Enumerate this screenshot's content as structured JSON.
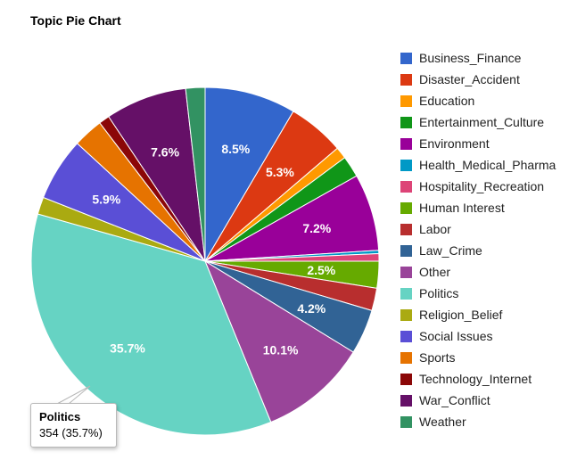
{
  "chart_data": {
    "type": "pie",
    "title": "Topic Pie Chart",
    "start_angle_deg": 0,
    "direction": "clockwise",
    "slices": [
      {
        "label": "Business_Finance",
        "value": 8.5,
        "color": "#3366cc",
        "data_label": "8.5%"
      },
      {
        "label": "Disaster_Accident",
        "value": 5.3,
        "color": "#dc3912",
        "data_label": "5.3%"
      },
      {
        "label": "Education",
        "value": 1.1,
        "color": "#ff9900",
        "data_label": ""
      },
      {
        "label": "Entertainment_Culture",
        "value": 2.0,
        "color": "#109618",
        "data_label": ""
      },
      {
        "label": "Environment",
        "value": 7.2,
        "color": "#990099",
        "data_label": "7.2%"
      },
      {
        "label": "Health_Medical_Pharma",
        "value": 0.3,
        "color": "#0099c6",
        "data_label": ""
      },
      {
        "label": "Hospitality_Recreation",
        "value": 0.7,
        "color": "#dd4477",
        "data_label": ""
      },
      {
        "label": "Human Interest",
        "value": 2.5,
        "color": "#66aa00",
        "data_label": "2.5%"
      },
      {
        "label": "Labor",
        "value": 2.1,
        "color": "#b82e2e",
        "data_label": ""
      },
      {
        "label": "Law_Crime",
        "value": 4.2,
        "color": "#316395",
        "data_label": "4.2%"
      },
      {
        "label": "Other",
        "value": 10.1,
        "color": "#994499",
        "data_label": "10.1%"
      },
      {
        "label": "Politics",
        "value": 35.7,
        "color": "#66d3c3",
        "data_label": "35.7%"
      },
      {
        "label": "Religion_Belief",
        "value": 1.6,
        "color": "#aaaa11",
        "data_label": ""
      },
      {
        "label": "Social Issues",
        "value": 5.9,
        "color": "#5a4fd6",
        "data_label": "5.9%"
      },
      {
        "label": "Sports",
        "value": 2.8,
        "color": "#e67300",
        "data_label": ""
      },
      {
        "label": "Technology_Internet",
        "value": 1.0,
        "color": "#8b0707",
        "data_label": ""
      },
      {
        "label": "War_Conflict",
        "value": 7.6,
        "color": "#651067",
        "data_label": "7.6%"
      },
      {
        "label": "Weather",
        "value": 1.8,
        "color": "#329262",
        "data_label": ""
      }
    ],
    "legend_position": "right",
    "tooltip": {
      "title": "Politics",
      "text": "354 (35.7%)"
    }
  }
}
